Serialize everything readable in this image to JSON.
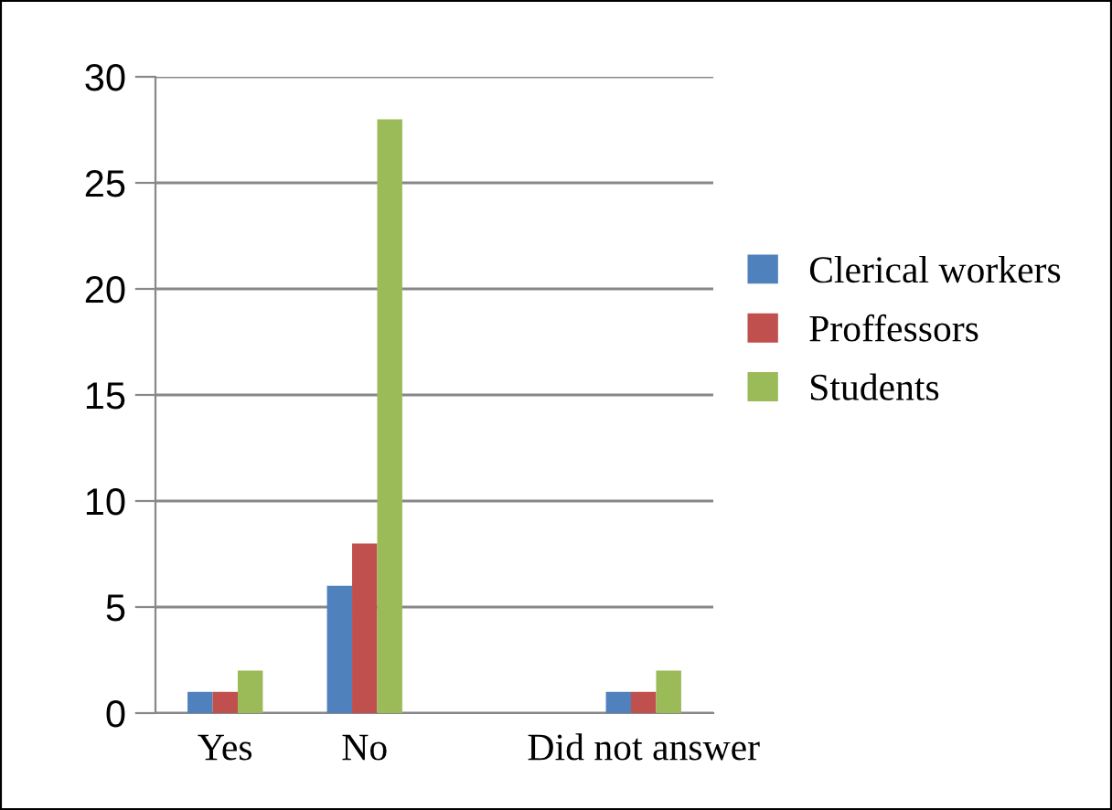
{
  "chart_data": {
    "type": "bar",
    "categories": [
      "Yes",
      "No",
      null,
      "Did not answer"
    ],
    "series": [
      {
        "name": "Clerical workers",
        "color": "#4f81bd",
        "values": [
          1,
          6,
          null,
          1
        ]
      },
      {
        "name": "Proffessors",
        "color": "#c0504d",
        "values": [
          1,
          8,
          null,
          1
        ]
      },
      {
        "name": "Students",
        "color": "#9bbb59",
        "values": [
          2,
          28,
          null,
          2
        ]
      }
    ],
    "ylim": [
      0,
      30
    ],
    "yticks": [
      0,
      5,
      10,
      15,
      20,
      25,
      30
    ],
    "grid": "y",
    "legend": "right"
  }
}
